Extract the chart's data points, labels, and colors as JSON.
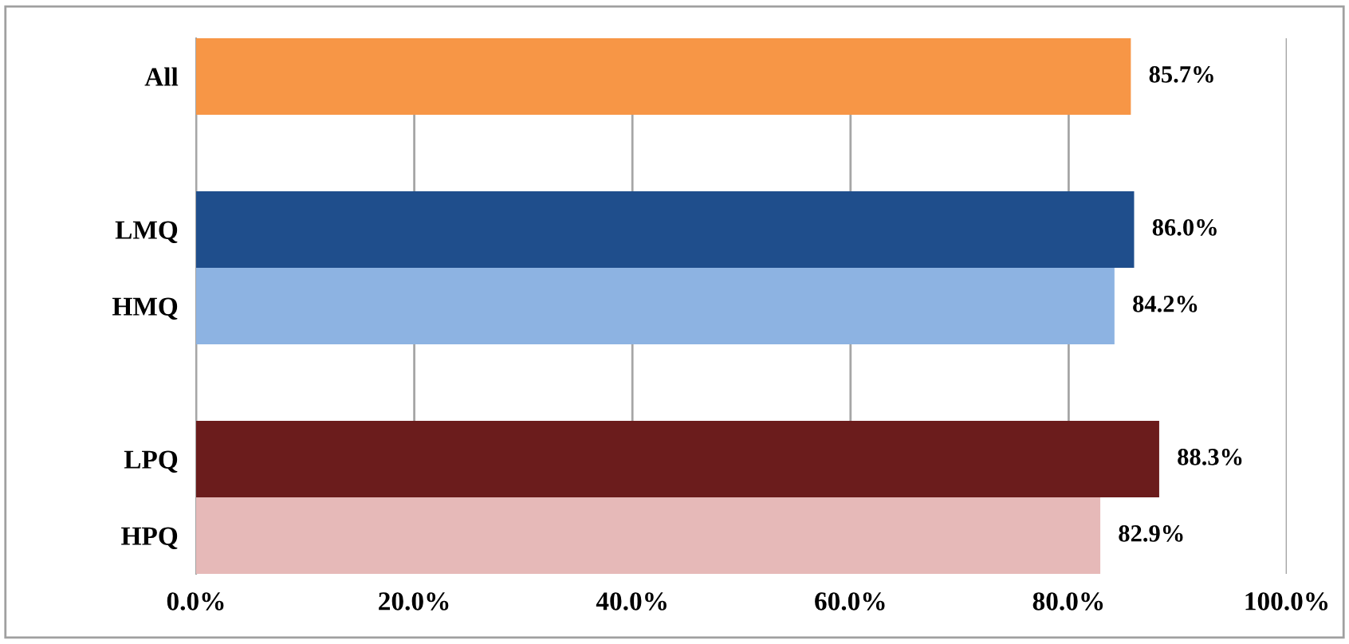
{
  "chart_data": {
    "type": "bar",
    "orientation": "horizontal",
    "categories": [
      "All",
      null,
      "LMQ",
      "HMQ",
      null,
      "LPQ",
      "HPQ"
    ],
    "values": [
      85.7,
      null,
      86.0,
      84.2,
      null,
      88.3,
      82.9
    ],
    "colors": [
      "#f79646",
      null,
      "#1f4e8c",
      "#8db3e2",
      null,
      "#6b1c1c",
      "#e6b9b8"
    ],
    "value_labels": [
      "85.7%",
      null,
      "86.0%",
      "84.2%",
      null,
      "88.3%",
      "82.9%"
    ],
    "xlim": [
      0,
      100
    ],
    "xticks": [
      {
        "value": 0,
        "label": "0.0%"
      },
      {
        "value": 20,
        "label": "20.0%"
      },
      {
        "value": 40,
        "label": "40.0%"
      },
      {
        "value": 60,
        "label": "60.0%"
      },
      {
        "value": 80,
        "label": "80.0%"
      },
      {
        "value": 100,
        "label": "100.0%"
      }
    ],
    "grid": "x",
    "legend": false
  }
}
